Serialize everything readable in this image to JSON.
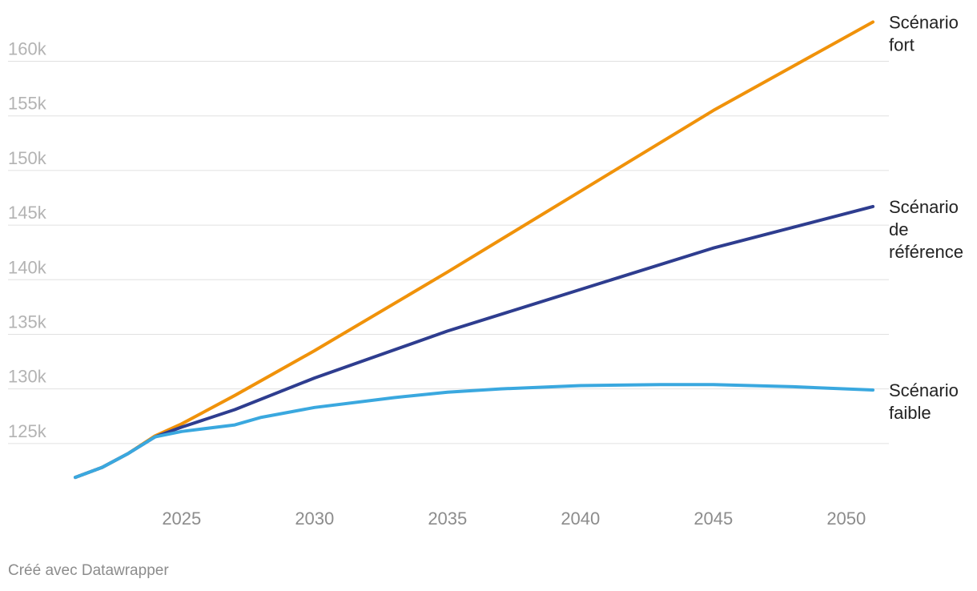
{
  "chart_data": {
    "type": "line",
    "title": "",
    "xlabel": "",
    "ylabel": "",
    "xlim": [
      2021,
      2051
    ],
    "ylim": [
      120000,
      164000
    ],
    "grid": true,
    "legend": "direct-labels-right",
    "y_ticks": [
      125000,
      130000,
      135000,
      140000,
      145000,
      150000,
      155000,
      160000
    ],
    "y_tick_labels": [
      "125k",
      "130k",
      "135k",
      "140k",
      "145k",
      "150k",
      "155k",
      "160k"
    ],
    "x_ticks": [
      2025,
      2030,
      2035,
      2040,
      2045,
      2050
    ],
    "x_tick_labels": [
      "2025",
      "2030",
      "2035",
      "2040",
      "2045",
      "2050"
    ],
    "series": [
      {
        "name": "Scénario fort",
        "label_lines": [
          "Scénario",
          "fort"
        ],
        "color": "#f0920a",
        "points": [
          [
            2021,
            121900
          ],
          [
            2022,
            122800
          ],
          [
            2023,
            124100
          ],
          [
            2024,
            125700
          ],
          [
            2025,
            126800
          ],
          [
            2027,
            129400
          ],
          [
            2030,
            133500
          ],
          [
            2035,
            140700
          ],
          [
            2040,
            148100
          ],
          [
            2045,
            155500
          ],
          [
            2051,
            163600
          ]
        ]
      },
      {
        "name": "Scénario de référence",
        "label_lines": [
          "Scénario",
          "de",
          "référence"
        ],
        "color": "#2e3d8f",
        "points": [
          [
            2021,
            121900
          ],
          [
            2022,
            122800
          ],
          [
            2023,
            124100
          ],
          [
            2024,
            125600
          ],
          [
            2025,
            126500
          ],
          [
            2027,
            128100
          ],
          [
            2030,
            131000
          ],
          [
            2035,
            135300
          ],
          [
            2040,
            139100
          ],
          [
            2045,
            142900
          ],
          [
            2051,
            146700
          ]
        ]
      },
      {
        "name": "Scénario faible",
        "label_lines": [
          "Scénario",
          "faible"
        ],
        "color": "#3aa8df",
        "points": [
          [
            2021,
            121900
          ],
          [
            2022,
            122800
          ],
          [
            2023,
            124100
          ],
          [
            2024,
            125600
          ],
          [
            2025,
            126100
          ],
          [
            2027,
            126700
          ],
          [
            2028,
            127400
          ],
          [
            2030,
            128300
          ],
          [
            2033,
            129200
          ],
          [
            2035,
            129700
          ],
          [
            2037,
            130000
          ],
          [
            2040,
            130300
          ],
          [
            2043,
            130400
          ],
          [
            2045,
            130400
          ],
          [
            2048,
            130200
          ],
          [
            2051,
            129900
          ]
        ]
      }
    ]
  },
  "footer": {
    "credit": "Créé avec Datawrapper"
  }
}
